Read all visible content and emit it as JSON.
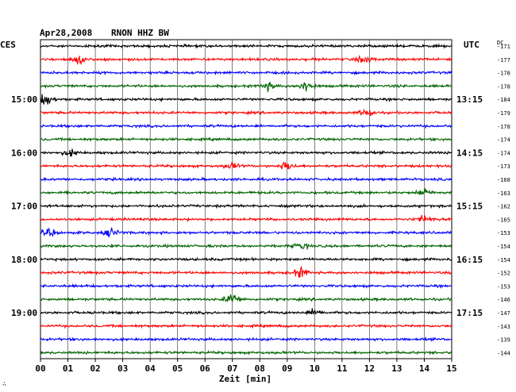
{
  "header": {
    "date": "Apr28,2008",
    "station": "RNON HHZ BW",
    "left_timezone": "CES",
    "right_timezone": "UTC",
    "dc_label": "DC"
  },
  "chart_data": {
    "type": "line",
    "description_kind": "helicorder",
    "xlabel": "Zeit [min]",
    "x_ticks": [
      "00",
      "01",
      "02",
      "03",
      "04",
      "05",
      "06",
      "07",
      "08",
      "09",
      "10",
      "11",
      "12",
      "13",
      "14",
      "15"
    ],
    "xlim": [
      0,
      15
    ],
    "rows_count": 24,
    "row_minutes": 15,
    "trace_colors": [
      "#000000",
      "#ff0000",
      "#0000ff",
      "#006400"
    ],
    "grid": true,
    "left_hour_labels": [
      {
        "row": 4,
        "text": "15:00"
      },
      {
        "row": 8,
        "text": "16:00"
      },
      {
        "row": 12,
        "text": "17:00"
      },
      {
        "row": 16,
        "text": "18:00"
      },
      {
        "row": 20,
        "text": "19:00"
      }
    ],
    "right_hour_labels": [
      {
        "row": 4,
        "text": "13:15"
      },
      {
        "row": 8,
        "text": "14:15"
      },
      {
        "row": 12,
        "text": "15:15"
      },
      {
        "row": 16,
        "text": "16:15"
      },
      {
        "row": 20,
        "text": "17:15"
      }
    ],
    "dc_offsets": [
      "-171",
      "-177",
      "-178",
      "-178",
      "-184",
      "-179",
      "-178",
      "-174",
      "-174",
      "-173",
      "-168",
      "-163",
      "-162",
      "-165",
      "-153",
      "-154",
      "-154",
      "-152",
      "-153",
      "-146",
      "-147",
      "-143",
      "-139",
      "-144"
    ],
    "events": [
      {
        "row": 1,
        "minute": 1.4,
        "amplitude": 2.0
      },
      {
        "row": 1,
        "minute": 11.8,
        "amplitude": 1.6
      },
      {
        "row": 3,
        "minute": 8.3,
        "amplitude": 1.8
      },
      {
        "row": 3,
        "minute": 9.7,
        "amplitude": 2.6
      },
      {
        "row": 4,
        "minute": 0.2,
        "amplitude": 3.0
      },
      {
        "row": 5,
        "minute": 11.9,
        "amplitude": 1.7
      },
      {
        "row": 8,
        "minute": 1.1,
        "amplitude": 1.5
      },
      {
        "row": 9,
        "minute": 7.0,
        "amplitude": 1.5
      },
      {
        "row": 9,
        "minute": 9.0,
        "amplitude": 2.2
      },
      {
        "row": 11,
        "minute": 14.0,
        "amplitude": 1.7
      },
      {
        "row": 13,
        "minute": 14.0,
        "amplitude": 1.6
      },
      {
        "row": 14,
        "minute": 0.3,
        "amplitude": 1.8
      },
      {
        "row": 14,
        "minute": 2.6,
        "amplitude": 2.0
      },
      {
        "row": 15,
        "minute": 9.5,
        "amplitude": 1.5
      },
      {
        "row": 17,
        "minute": 9.5,
        "amplitude": 2.3
      },
      {
        "row": 19,
        "minute": 7.0,
        "amplitude": 2.8
      },
      {
        "row": 20,
        "minute": 10.0,
        "amplitude": 1.6
      }
    ],
    "corner_mark": "∴"
  }
}
